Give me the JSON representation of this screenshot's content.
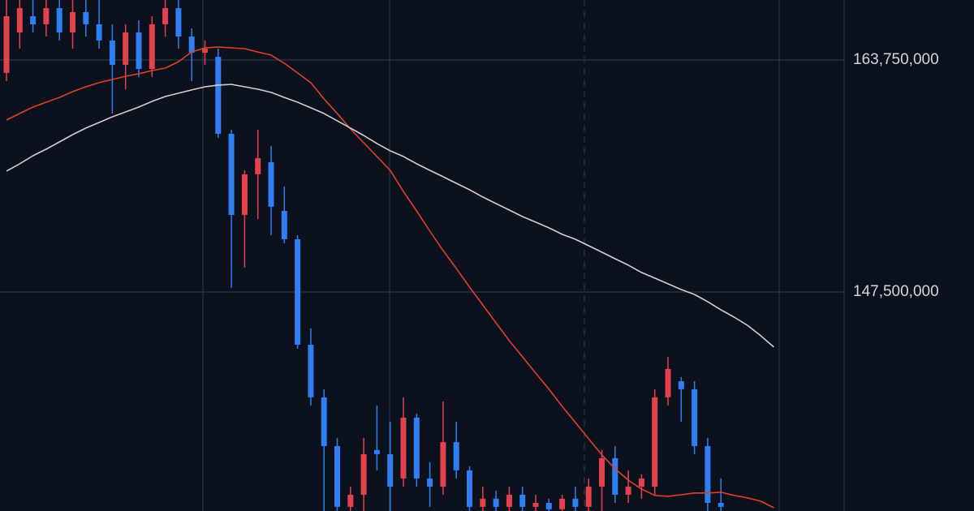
{
  "chart_data": {
    "type": "candlestick",
    "categories": [
      null,
      null,
      null,
      null,
      null,
      null,
      null,
      null,
      null,
      null,
      null,
      null,
      null,
      null,
      null,
      null,
      null,
      null,
      null,
      null,
      null,
      null,
      null,
      null,
      null,
      null,
      null,
      null,
      null,
      null,
      null,
      null,
      null,
      null,
      null,
      null,
      null,
      null,
      null,
      null,
      null,
      null,
      null,
      null,
      null,
      null,
      null,
      null,
      null,
      null,
      null,
      null,
      null,
      null,
      null,
      null,
      null,
      null,
      null
    ],
    "open": [
      162840000,
      165680000,
      166810000,
      166250000,
      167380000,
      165680000,
      167100000,
      166250000,
      165110000,
      163410000,
      165680000,
      163120000,
      166250000,
      167380000,
      165390000,
      164260000,
      163970000,
      158580000,
      152900000,
      155740000,
      156590000,
      153180000,
      151190000,
      143810000,
      140120000,
      136710000,
      132450000,
      133300000,
      136430000,
      136140000,
      134440000,
      138700000,
      134440000,
      133870000,
      136990000,
      135010000,
      132450000,
      133020000,
      132450000,
      133300000,
      132450000,
      132730000,
      132280000,
      133020000,
      132450000,
      133870000,
      135860000,
      133300000,
      133870000,
      133870000,
      140120000,
      141250000,
      140690000,
      136710000,
      132730000,
      null,
      null,
      null,
      null
    ],
    "high": [
      167950000,
      167950000,
      167950000,
      167950000,
      167950000,
      167950000,
      167950000,
      167950000,
      166250000,
      166250000,
      166530000,
      166810000,
      167950000,
      167950000,
      165960000,
      165110000,
      164540000,
      158860000,
      156020000,
      158860000,
      157730000,
      154890000,
      151480000,
      144950000,
      140690000,
      137280000,
      133870000,
      137280000,
      139550000,
      138410000,
      140120000,
      138980000,
      135580000,
      139830000,
      138410000,
      135290000,
      133870000,
      133590000,
      133870000,
      133870000,
      133300000,
      133020000,
      133300000,
      133870000,
      134440000,
      136430000,
      136710000,
      135010000,
      134720000,
      140690000,
      142960000,
      141540000,
      141250000,
      137280000,
      134440000,
      null,
      null,
      null,
      null
    ],
    "low": [
      162270000,
      164540000,
      165680000,
      165390000,
      165110000,
      164540000,
      165390000,
      164540000,
      160000000,
      161700000,
      162550000,
      162550000,
      165390000,
      164540000,
      162270000,
      163410000,
      158290000,
      147790000,
      149210000,
      152610000,
      151480000,
      150910000,
      143530000,
      139550000,
      132160000,
      132160000,
      132160000,
      132160000,
      135010000,
      132160000,
      133870000,
      133870000,
      132450000,
      133300000,
      134440000,
      132160000,
      132160000,
      132160000,
      132160000,
      132160000,
      132160000,
      132160000,
      132160000,
      132160000,
      132160000,
      132160000,
      132730000,
      132730000,
      133020000,
      133300000,
      139550000,
      138410000,
      136140000,
      132160000,
      132160000,
      null,
      null,
      null,
      null
    ],
    "close": [
      166810000,
      167380000,
      166250000,
      167380000,
      165680000,
      167100000,
      166250000,
      165110000,
      163410000,
      165680000,
      163120000,
      166250000,
      167380000,
      165390000,
      164260000,
      164540000,
      158580000,
      152900000,
      155740000,
      156870000,
      153470000,
      151190000,
      143810000,
      140120000,
      136710000,
      132450000,
      133300000,
      136140000,
      136140000,
      133870000,
      138700000,
      134440000,
      133870000,
      136990000,
      135010000,
      132450000,
      133020000,
      132450000,
      133300000,
      132450000,
      132730000,
      132280000,
      133020000,
      132450000,
      133870000,
      135860000,
      133300000,
      133870000,
      134440000,
      140120000,
      142110000,
      140690000,
      136710000,
      132730000,
      132450000,
      null,
      null,
      null,
      null
    ],
    "up_color": "#e5414c",
    "down_color": "#2f7ff2",
    "moving_averages": [
      {
        "color": "#e0402c",
        "values": [
          159540000,
          160000000,
          160450000,
          160790000,
          161130000,
          161530000,
          161870000,
          162160000,
          162380000,
          162610000,
          162780000,
          163010000,
          163180000,
          163630000,
          164310000,
          164600000,
          164660000,
          164600000,
          164540000,
          164310000,
          164090000,
          163520000,
          162840000,
          162160000,
          161020000,
          160000000,
          158920000,
          157950000,
          156990000,
          156020000,
          154540000,
          153180000,
          151760000,
          150400000,
          149150000,
          147840000,
          146590000,
          145340000,
          144090000,
          142960000,
          141820000,
          140690000,
          139490000,
          138360000,
          137220000,
          136090000,
          135120000,
          134320000,
          133700000,
          133250000,
          133190000,
          133300000,
          133420000,
          133420000,
          133470000,
          133250000,
          133080000,
          132850000,
          132390000
        ]
      },
      {
        "color": "#cfd1d4",
        "values": [
          155970000,
          156480000,
          157040000,
          157500000,
          158010000,
          158520000,
          158980000,
          159370000,
          159770000,
          160110000,
          160450000,
          160850000,
          161190000,
          161420000,
          161650000,
          161870000,
          161990000,
          162040000,
          161870000,
          161700000,
          161480000,
          161130000,
          160790000,
          160400000,
          160000000,
          159490000,
          158980000,
          158460000,
          157900000,
          157390000,
          156990000,
          156480000,
          156020000,
          155570000,
          155110000,
          154660000,
          154150000,
          153690000,
          153240000,
          152780000,
          152390000,
          151990000,
          151540000,
          151190000,
          150740000,
          150290000,
          149830000,
          149380000,
          148870000,
          148470000,
          148070000,
          147670000,
          147330000,
          146820000,
          146250000,
          145740000,
          145170000,
          144440000,
          143640000
        ]
      }
    ],
    "ylim": [
      132160000,
      167950000
    ],
    "yticks": [
      {
        "value": 163750000,
        "label": "163,750,000"
      },
      {
        "value": 147500000,
        "label": "147,500,000"
      }
    ],
    "grid": true
  }
}
